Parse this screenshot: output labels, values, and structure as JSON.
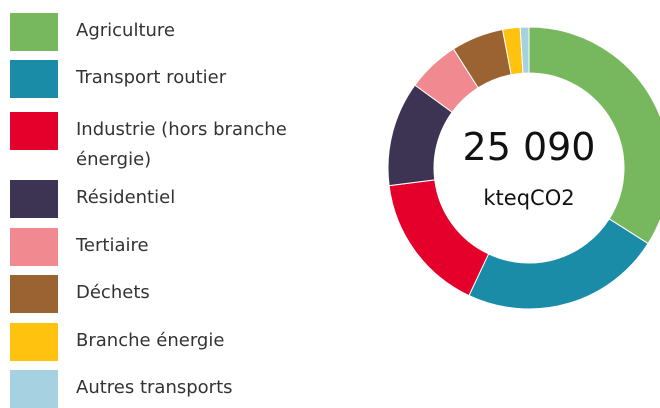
{
  "chart_data": {
    "type": "donut",
    "center_value": "25 090",
    "center_unit": "kteqCO2",
    "series": [
      {
        "name": "Agriculture",
        "color": "#77b85e",
        "value": 34
      },
      {
        "name": "Transport routier",
        "color": "#1a8ca8",
        "value": 23
      },
      {
        "name": "Industrie (hors branche énergie)",
        "color": "#e4002b",
        "value": 16
      },
      {
        "name": "Résidentiel",
        "color": "#3d3353",
        "value": 12
      },
      {
        "name": "Tertiaire",
        "color": "#f08a90",
        "value": 6
      },
      {
        "name": "Déchets",
        "color": "#9b6332",
        "value": 6
      },
      {
        "name": "Branche énergie",
        "color": "#ffc20e",
        "value": 2
      },
      {
        "name": "Autres transports",
        "color": "#a6d1e0",
        "value": 1
      }
    ]
  }
}
